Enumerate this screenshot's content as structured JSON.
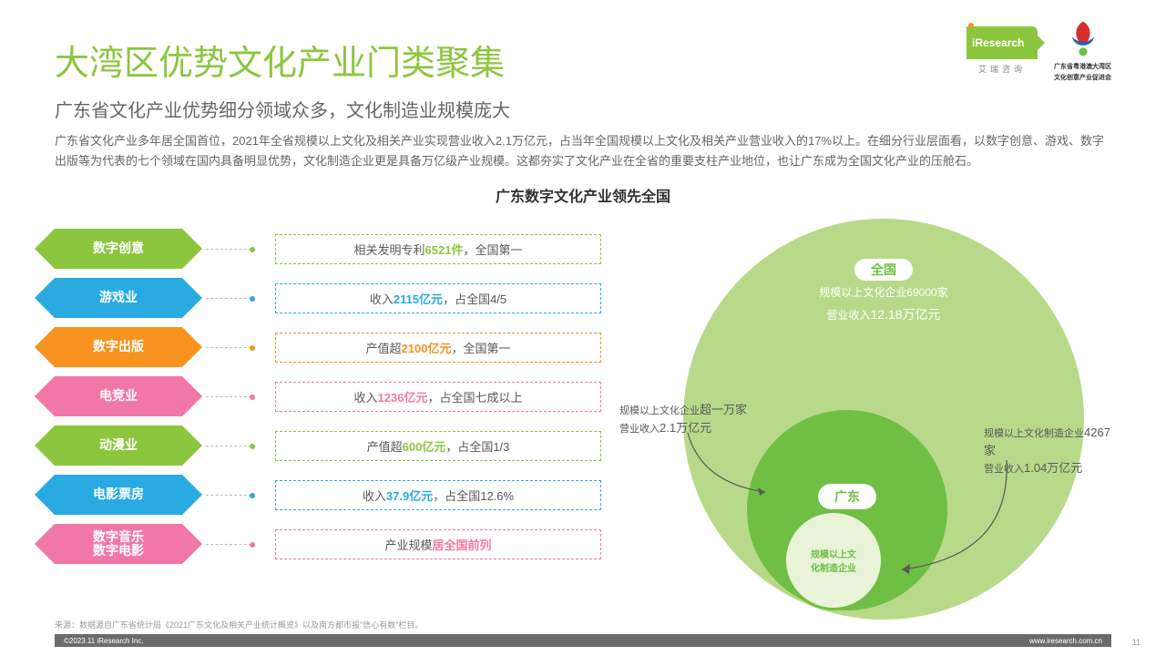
{
  "logos": {
    "iresearch": "iResearch",
    "iresearch_sub": "艾瑞咨询",
    "org_line1": "广东省粤港澳大湾区",
    "org_line2": "文化创意产业促进会"
  },
  "title": "大湾区优势文化产业门类聚集",
  "subtitle": "广东省文化产业优势细分领域众多，文化制造业规模庞大",
  "paragraph": "广东省文化产业多年居全国首位，2021年全省规模以上文化及相关产业实现营业收入2.1万亿元，占当年全国规模以上文化及相关产业营业收入的17%以上。在细分行业层面看，以数字创意、游戏、数字出版等为代表的七个领域在国内具备明显优势，文化制造企业更是具备万亿级产业规模。这都夯实了文化产业在全省的重要支柱产业地位，也让广东成为全国文化产业的压舱石。",
  "section_title": "广东数字文化产业领先全国",
  "colors": {
    "green": "#8cc63f",
    "midgreen": "#6fbf44",
    "lightgreen": "#b8d98a",
    "palegreen": "#e8f3d8",
    "cyan": "#29abe2",
    "orange": "#f7931e",
    "pink": "#f178a6",
    "grayfooter": "#6b6b6b"
  },
  "rows": [
    {
      "label": "数字创意",
      "color": "#8cc63f",
      "pre": "相关发明专利",
      "hl": "6521件",
      "post": "，全国第一"
    },
    {
      "label": "游戏业",
      "color": "#29abe2",
      "pre": "收入",
      "hl": "2115亿元",
      "post": "，占全国4/5"
    },
    {
      "label": "数字出版",
      "color": "#f7931e",
      "pre": "产值超",
      "hl": "2100亿元",
      "post": "，全国第一"
    },
    {
      "label": "电竞业",
      "color": "#f178a6",
      "pre": "收入",
      "hl": "1236亿元",
      "post": "，占全国七成以上"
    },
    {
      "label": "动漫业",
      "color": "#8cc63f",
      "pre": "产值超",
      "hl": "600亿元",
      "post": "，占全国1/3"
    },
    {
      "label": "电影票房",
      "color": "#29abe2",
      "pre": "收入",
      "hl": "37.9亿元",
      "post": "，占全国12.6%"
    },
    {
      "label": "数字音乐\n数字电影",
      "color": "#f178a6",
      "pre": "产业规模",
      "hl": "居全国前列",
      "post": ""
    }
  ],
  "venn": {
    "outer": {
      "pill": "全国",
      "line1": "规模以上文化企业69000家",
      "line2_pre": "营业收入",
      "line2_hl": "12.18万亿元"
    },
    "mid": {
      "pill": "广东"
    },
    "inner": {
      "text": "规模以上文\n化制造企业"
    },
    "annot_left": {
      "line1": "规模以上文化企业",
      "line1_hl": "超一万家",
      "line2_pre": "营业收入",
      "line2_hl": "2.1万亿元"
    },
    "annot_right": {
      "line1": "规模以上文化制造企业",
      "line1_hl": "4267家",
      "line2_pre": "营业收入",
      "line2_hl": "1.04万亿元"
    }
  },
  "footer": {
    "source": "来源：数据源自广东省统计局《2021广东文化及相关产业统计概览》以及南方都市报\"信心有数\"栏目。",
    "copyright": "©2023.11 iResearch Inc.",
    "url": "www.iresearch.com.cn",
    "page": "11"
  }
}
